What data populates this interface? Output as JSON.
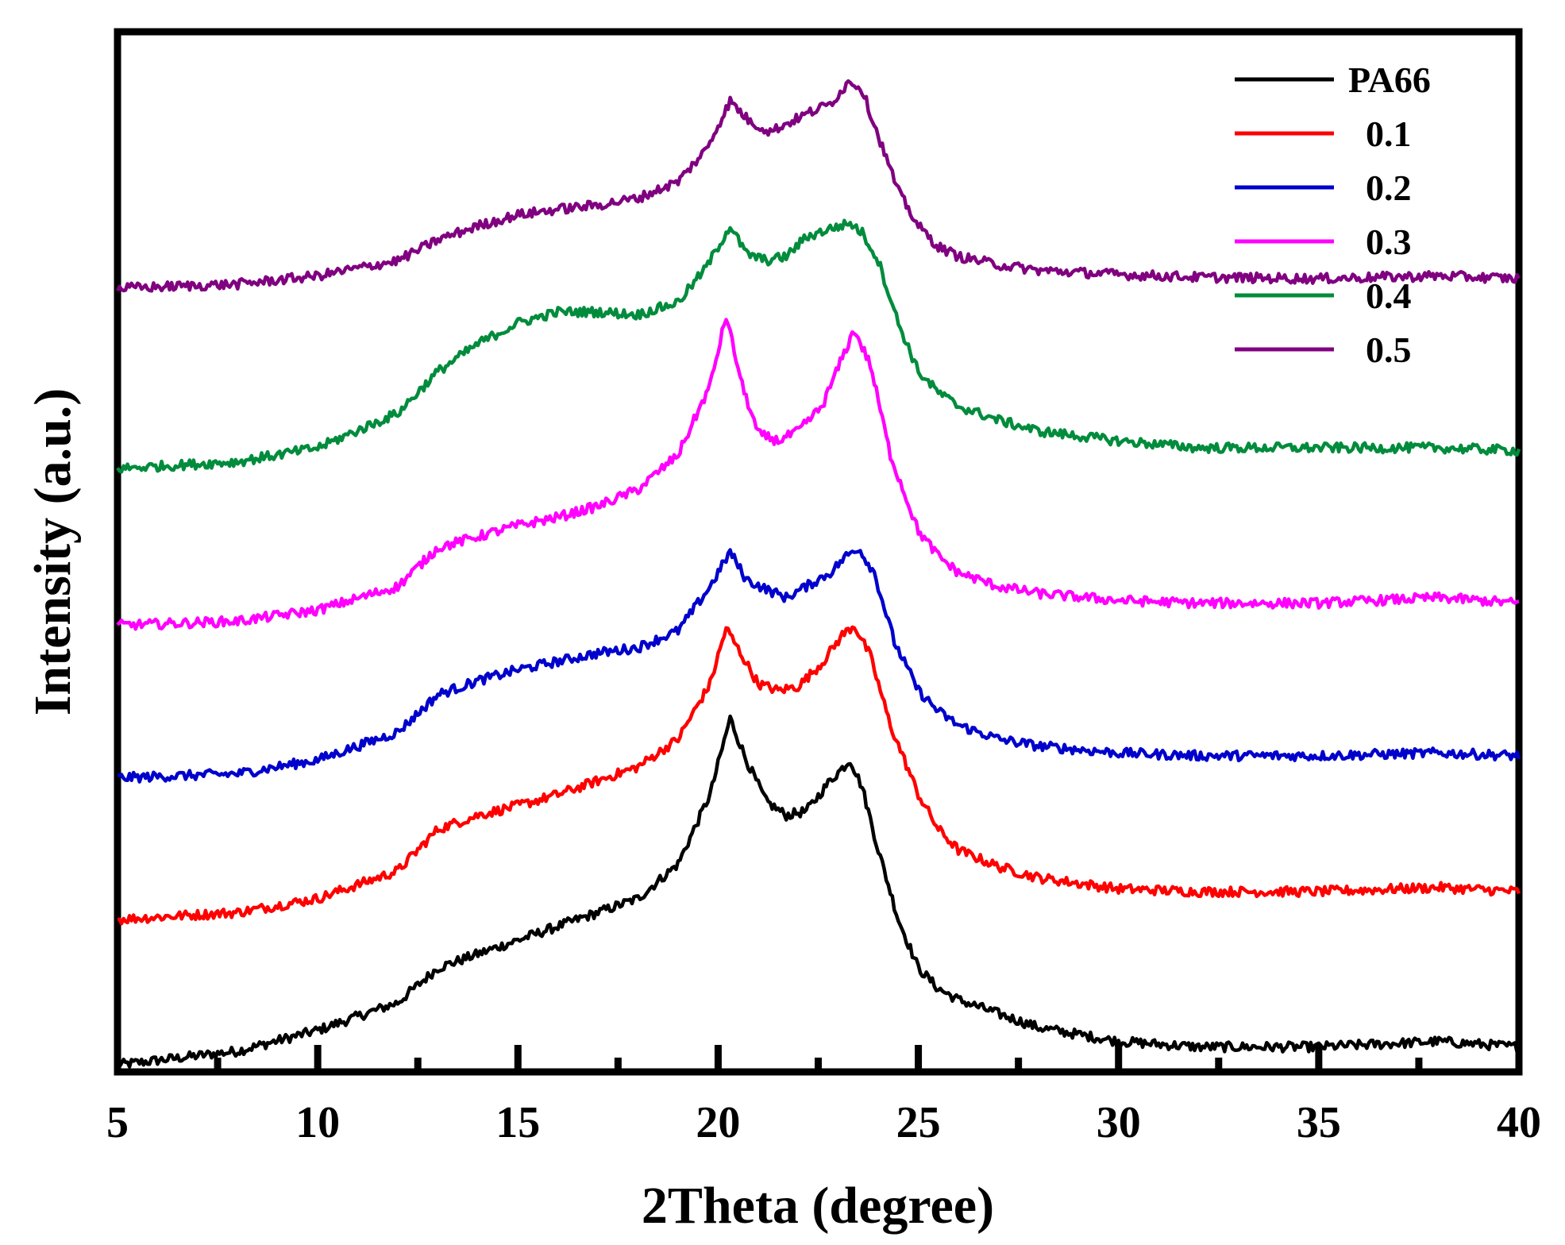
{
  "chart_data": {
    "type": "line",
    "title": "",
    "xlabel": "2Theta (degree)",
    "ylabel": "Intensity (a.u.)",
    "xlim": [
      5,
      40
    ],
    "ylim": [
      0,
      7.5
    ],
    "y_axis_units": "arbitrary (curves vertically offset)",
    "major_ticks": [
      5,
      10,
      15,
      20,
      25,
      30,
      35,
      40
    ],
    "tick_labels": [
      "5",
      "10",
      "15",
      "20",
      "25",
      "30",
      "35",
      "40"
    ],
    "minor_ticks": [
      7.5,
      12.5,
      17.5,
      22.5,
      27.5,
      32.5,
      37.5
    ],
    "grid": false,
    "legend_position": "top-right",
    "series": [
      {
        "name": "PA66",
        "color": "#000000",
        "x": [
          5,
          8,
          10,
          12,
          13,
          14,
          15,
          16,
          17,
          18,
          19,
          19.8,
          20.3,
          20.7,
          21.2,
          21.7,
          22.2,
          22.8,
          23.3,
          23.6,
          24,
          24.5,
          25,
          25.5,
          26,
          27,
          28,
          30,
          32,
          35,
          38,
          40
        ],
        "y": [
          0.05,
          0.15,
          0.3,
          0.5,
          0.75,
          0.85,
          0.95,
          1.05,
          1.15,
          1.25,
          1.5,
          2.0,
          2.55,
          2.25,
          1.95,
          1.85,
          1.88,
          2.1,
          2.25,
          2.05,
          1.6,
          1.1,
          0.75,
          0.6,
          0.52,
          0.42,
          0.32,
          0.22,
          0.18,
          0.18,
          0.22,
          0.18
        ]
      },
      {
        "name": "0.1",
        "color": "#ff0000",
        "x": [
          5,
          8,
          10,
          12,
          13,
          14,
          15,
          16,
          17,
          18,
          19,
          19.8,
          20.2,
          20.6,
          21,
          21.5,
          22,
          22.6,
          23.1,
          23.4,
          23.8,
          24.3,
          25,
          25.5,
          26,
          27,
          28,
          30,
          32,
          35,
          38,
          40
        ],
        "y": [
          1.1,
          1.15,
          1.25,
          1.45,
          1.75,
          1.85,
          1.92,
          2.0,
          2.1,
          2.2,
          2.4,
          2.8,
          3.2,
          3.0,
          2.8,
          2.75,
          2.78,
          2.95,
          3.15,
          3.22,
          3.0,
          2.5,
          2.0,
          1.75,
          1.6,
          1.48,
          1.4,
          1.32,
          1.3,
          1.3,
          1.33,
          1.3
        ]
      },
      {
        "name": "0.2",
        "color": "#0000cc",
        "x": [
          5,
          8,
          10,
          12,
          13,
          14,
          15,
          16,
          17,
          18,
          19,
          19.8,
          20.3,
          20.7,
          21.2,
          21.7,
          22.2,
          22.8,
          23.2,
          23.5,
          23.9,
          24.4,
          25,
          25.5,
          26,
          27,
          28,
          30,
          32,
          35,
          38,
          40
        ],
        "y": [
          2.12,
          2.15,
          2.25,
          2.45,
          2.72,
          2.82,
          2.9,
          2.96,
          3.02,
          3.06,
          3.18,
          3.5,
          3.75,
          3.55,
          3.48,
          3.42,
          3.5,
          3.6,
          3.72,
          3.78,
          3.6,
          3.1,
          2.75,
          2.6,
          2.5,
          2.4,
          2.35,
          2.3,
          2.28,
          2.28,
          2.3,
          2.28
        ]
      },
      {
        "name": "0.3",
        "color": "#ff00ff",
        "x": [
          5,
          8,
          10,
          12,
          13,
          14,
          15,
          16,
          17,
          18,
          19,
          19.8,
          20.2,
          20.6,
          21,
          21.5,
          22,
          22.6,
          23.1,
          23.4,
          23.8,
          24.3,
          25,
          25.5,
          26,
          27,
          28,
          30,
          32,
          35,
          38,
          40
        ],
        "y": [
          3.22,
          3.25,
          3.33,
          3.5,
          3.78,
          3.86,
          3.94,
          4.0,
          4.08,
          4.2,
          4.45,
          4.95,
          5.45,
          4.95,
          4.6,
          4.55,
          4.62,
          4.8,
          5.15,
          5.35,
          5.1,
          4.45,
          3.9,
          3.72,
          3.6,
          3.5,
          3.45,
          3.4,
          3.38,
          3.38,
          3.42,
          3.38
        ]
      },
      {
        "name": "0.4",
        "color": "#008c3c",
        "x": [
          5,
          8,
          10,
          12,
          13,
          14,
          15,
          16,
          17,
          18,
          19,
          19.7,
          20.3,
          20.7,
          21.2,
          21.7,
          22.2,
          22.8,
          23.3,
          23.6,
          24,
          24.5,
          25,
          25.5,
          26,
          27,
          28,
          30,
          32,
          35,
          38,
          40
        ],
        "y": [
          4.35,
          4.4,
          4.5,
          4.75,
          5.05,
          5.25,
          5.4,
          5.48,
          5.48,
          5.46,
          5.55,
          5.8,
          6.1,
          5.9,
          5.85,
          5.88,
          6.02,
          6.08,
          6.12,
          6.05,
          5.85,
          5.4,
          5.05,
          4.9,
          4.8,
          4.7,
          4.62,
          4.55,
          4.5,
          4.5,
          4.5,
          4.48
        ]
      },
      {
        "name": "0.5",
        "color": "#800080",
        "x": [
          5,
          8,
          10,
          12,
          13,
          14,
          15,
          16,
          17,
          18,
          19,
          19.7,
          20.3,
          20.8,
          21.3,
          21.8,
          22.3,
          22.8,
          23.3,
          23.6,
          24,
          24.5,
          25,
          25.5,
          26,
          27,
          28,
          30,
          32,
          35,
          38,
          40
        ],
        "y": [
          5.65,
          5.68,
          5.74,
          5.85,
          6.0,
          6.1,
          6.18,
          6.22,
          6.25,
          6.3,
          6.42,
          6.65,
          7.0,
          6.85,
          6.78,
          6.85,
          6.92,
          6.98,
          7.15,
          7.08,
          6.75,
          6.35,
          6.1,
          5.95,
          5.88,
          5.82,
          5.78,
          5.75,
          5.73,
          5.72,
          5.74,
          5.72
        ]
      }
    ]
  }
}
